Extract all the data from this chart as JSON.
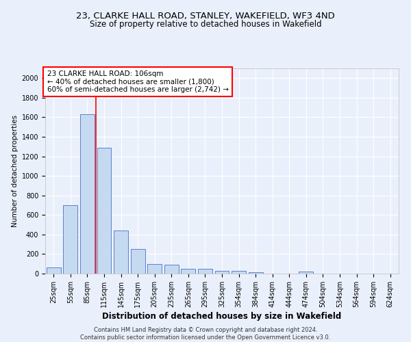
{
  "title_line1": "23, CLARKE HALL ROAD, STANLEY, WAKEFIELD, WF3 4ND",
  "title_line2": "Size of property relative to detached houses in Wakefield",
  "xlabel": "Distribution of detached houses by size in Wakefield",
  "ylabel": "Number of detached properties",
  "footer_line1": "Contains HM Land Registry data © Crown copyright and database right 2024.",
  "footer_line2": "Contains public sector information licensed under the Open Government Licence v3.0.",
  "annotation_line1": "23 CLARKE HALL ROAD: 106sqm",
  "annotation_line2": "← 40% of detached houses are smaller (1,800)",
  "annotation_line3": "60% of semi-detached houses are larger (2,742) →",
  "bar_categories": [
    "25sqm",
    "55sqm",
    "85sqm",
    "115sqm",
    "145sqm",
    "175sqm",
    "205sqm",
    "235sqm",
    "265sqm",
    "295sqm",
    "325sqm",
    "354sqm",
    "384sqm",
    "414sqm",
    "444sqm",
    "474sqm",
    "504sqm",
    "534sqm",
    "564sqm",
    "594sqm",
    "624sqm"
  ],
  "bar_values": [
    65,
    700,
    1630,
    1285,
    440,
    250,
    95,
    90,
    50,
    50,
    30,
    30,
    15,
    0,
    0,
    20,
    0,
    0,
    0,
    0,
    0
  ],
  "bar_color": "#c5d9f1",
  "bar_edge_color": "#4472c4",
  "vline_x": 2.5,
  "vline_color": "red",
  "ylim": [
    0,
    2100
  ],
  "yticks": [
    0,
    200,
    400,
    600,
    800,
    1000,
    1200,
    1400,
    1600,
    1800,
    2000
  ],
  "bg_color": "#eaf0fb",
  "grid_color": "#ffffff",
  "annotation_box_color": "white",
  "annotation_box_edge": "red",
  "title1_fontsize": 9.5,
  "title2_fontsize": 8.5,
  "xlabel_fontsize": 8.5,
  "ylabel_fontsize": 7.5,
  "tick_fontsize": 7,
  "footer_fontsize": 6,
  "ann_fontsize": 7.5
}
